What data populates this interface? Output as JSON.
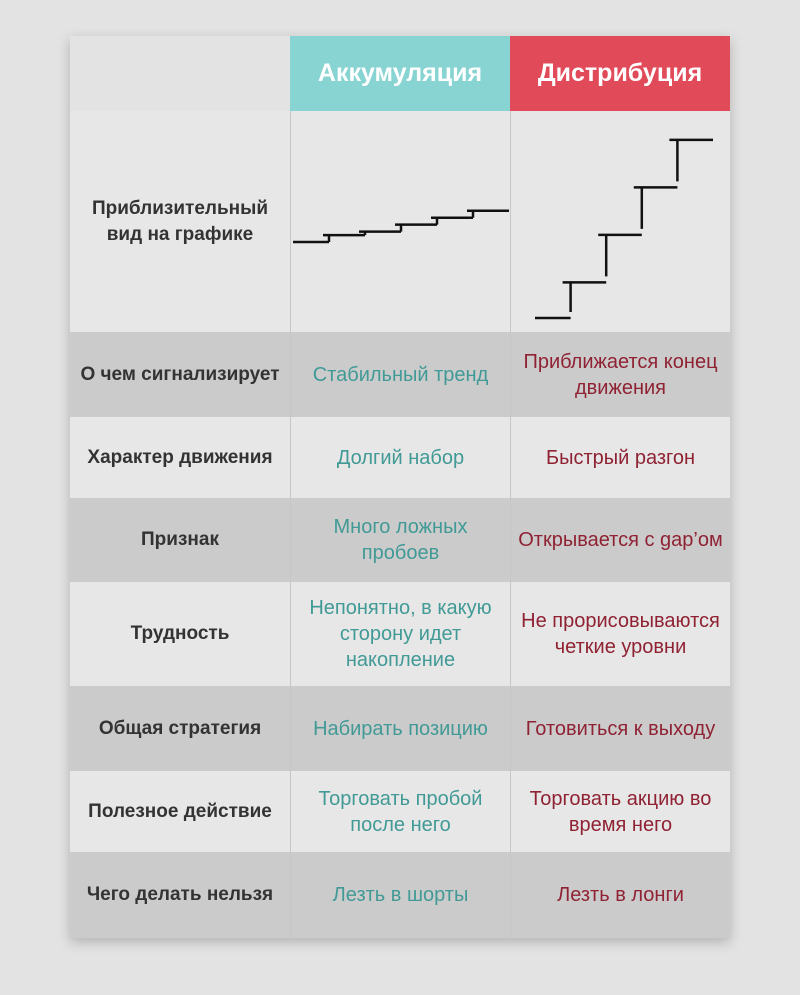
{
  "header": {
    "accumulation_title": "Аккумуляция",
    "distribution_title": "Дистрибуция",
    "accumulation_color": "#88d4d3",
    "distribution_color": "#e14a58"
  },
  "chart_row_label": "Приблизительный вид на графике",
  "chart_data": [
    {
      "type": "line",
      "series": [
        {
          "shape": "staircase",
          "values": [
            0,
            1,
            1.5,
            2.5,
            3.5,
            4.5
          ]
        }
      ],
      "ylim": [
        0,
        16
      ],
      "xlabel": "",
      "ylabel": "",
      "grid": false
    },
    {
      "type": "line",
      "series": [
        {
          "shape": "staircase",
          "values": [
            0,
            3,
            7,
            11,
            15
          ]
        }
      ],
      "ylim": [
        0,
        16
      ],
      "xlabel": "",
      "ylabel": "",
      "grid": false
    }
  ],
  "rows": [
    {
      "label": "О чем сигнализирует",
      "accumulation": "Стабильный тренд",
      "distribution": "Приближается конец движения"
    },
    {
      "label": "Характер движения",
      "accumulation": "Долгий набор",
      "distribution": "Быстрый разгон"
    },
    {
      "label": "Признак",
      "accumulation": "Много ложных пробоев",
      "distribution": "Открывается с gap’ом"
    },
    {
      "label": "Трудность",
      "accumulation": "Непонятно, в какую сторону идет накопление",
      "distribution": "Не прорисовываются четкие уровни"
    },
    {
      "label": "Общая стратегия",
      "accumulation": "Набирать позицию",
      "distribution": "Готовиться к выходу"
    },
    {
      "label": "Полезное действие",
      "accumulation": "Торговать пробой после него",
      "distribution": "Торговать акцию во время него"
    },
    {
      "label": "Чего делать нельзя",
      "accumulation": "Лезть в шорты",
      "distribution": "Лезть в лонги"
    }
  ]
}
